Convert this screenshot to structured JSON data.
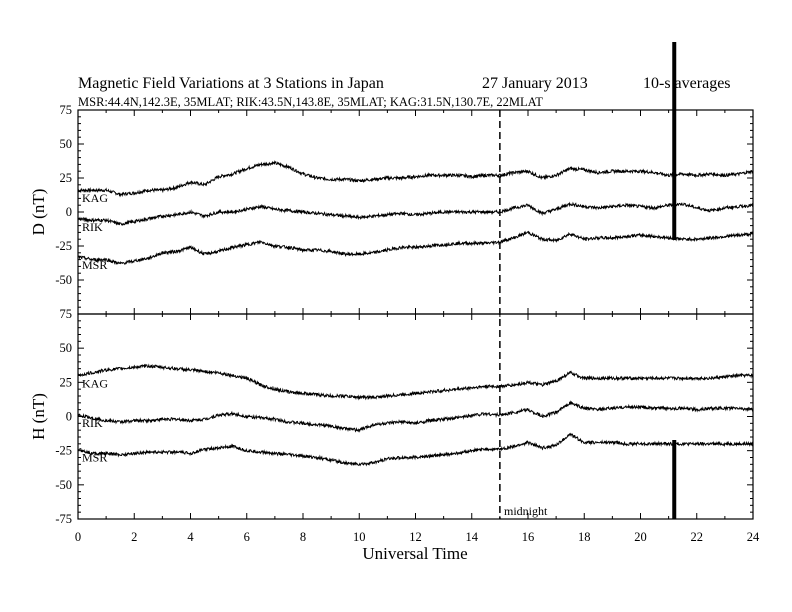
{
  "header": {
    "title": "Magnetic Field Variations at 3 Stations in Japan",
    "date": "27 January  2013",
    "averaging": "10-s averages",
    "stations_line": "MSR:44.4N,142.3E, 35MLAT;  RIK:43.5N,143.8E, 35MLAT;  KAG:31.5N,130.7E, 22MLAT"
  },
  "chart_data": {
    "type": "line",
    "xlabel": "Universal Time",
    "xlim": [
      0,
      24
    ],
    "xticks": [
      "0",
      "2",
      "4",
      "6",
      "8",
      "10",
      "12",
      "14",
      "16",
      "18",
      "20",
      "22",
      "24"
    ],
    "midnight_ut": 15,
    "midnight_label": "midnight",
    "event_marker_ut": 21.2,
    "grid": false,
    "panels": [
      {
        "ylabel": "D (nT)",
        "ylim": [
          -75,
          75
        ],
        "yticks": [
          "75",
          "50",
          "25",
          "0",
          "-25",
          "-50",
          "-75"
        ],
        "x": [
          0,
          0.5,
          1,
          1.5,
          2,
          2.5,
          3,
          3.5,
          4,
          4.5,
          5,
          5.5,
          6,
          6.5,
          7,
          7.5,
          8,
          8.5,
          9,
          9.5,
          10,
          10.5,
          11,
          11.5,
          12,
          12.5,
          13,
          13.5,
          14,
          14.5,
          15,
          15.5,
          16,
          16.5,
          17,
          17.5,
          18,
          18.5,
          19,
          19.5,
          20,
          20.5,
          21,
          21.5,
          22,
          22.5,
          23,
          23.5,
          24
        ],
        "series": [
          {
            "name": "KAG",
            "values": [
              16,
              16,
              16,
              13,
              14,
              16,
              16,
              18,
              22,
              20,
              26,
              28,
              32,
              35,
              36,
              33,
              28,
              25,
              24,
              24,
              23,
              24,
              25,
              25,
              26,
              27,
              27,
              27,
              26,
              27,
              27,
              29,
              30,
              25,
              27,
              32,
              31,
              29,
              30,
              30,
              30,
              29,
              27,
              28,
              27,
              28,
              27,
              28,
              30
            ]
          },
          {
            "name": "RIK",
            "values": [
              -5,
              -6,
              -6,
              -9,
              -7,
              -5,
              -3,
              -2,
              0,
              -3,
              0,
              0,
              2,
              4,
              2,
              1,
              0,
              -1,
              -2,
              -3,
              -4,
              -3,
              -2,
              -1,
              -2,
              -1,
              0,
              0,
              0,
              0,
              0,
              3,
              5,
              -1,
              2,
              6,
              4,
              3,
              4,
              5,
              4,
              3,
              5,
              6,
              3,
              1,
              3,
              4,
              5
            ]
          },
          {
            "name": "MSR",
            "values": [
              -33,
              -35,
              -35,
              -38,
              -36,
              -34,
              -30,
              -29,
              -26,
              -31,
              -29,
              -26,
              -24,
              -22,
              -25,
              -26,
              -28,
              -28,
              -29,
              -31,
              -31,
              -30,
              -28,
              -26,
              -26,
              -25,
              -24,
              -23,
              -23,
              -23,
              -22,
              -19,
              -15,
              -20,
              -21,
              -16,
              -20,
              -19,
              -19,
              -18,
              -17,
              -18,
              -19,
              -20,
              -20,
              -19,
              -18,
              -17,
              -16
            ]
          }
        ]
      },
      {
        "ylabel": "H (nT)",
        "ylim": [
          -75,
          75
        ],
        "yticks": [
          "75",
          "50",
          "25",
          "0",
          "-25",
          "-50",
          "-75"
        ],
        "x": [
          0,
          0.5,
          1,
          1.5,
          2,
          2.5,
          3,
          3.5,
          4,
          4.5,
          5,
          5.5,
          6,
          6.5,
          7,
          7.5,
          8,
          8.5,
          9,
          9.5,
          10,
          10.5,
          11,
          11.5,
          12,
          12.5,
          13,
          13.5,
          14,
          14.5,
          15,
          15.5,
          16,
          16.5,
          17,
          17.5,
          18,
          18.5,
          19,
          19.5,
          20,
          20.5,
          21,
          21.5,
          22,
          22.5,
          23,
          23.5,
          24
        ],
        "series": [
          {
            "name": "KAG",
            "values": [
              30,
              32,
              34,
              35,
              36,
              37,
              36,
              35,
              34,
              33,
              32,
              30,
              28,
              23,
              20,
              18,
              17,
              16,
              15,
              15,
              14,
              14,
              15,
              16,
              17,
              18,
              19,
              20,
              21,
              22,
              22,
              23,
              25,
              23,
              26,
              32,
              28,
              28,
              28,
              28,
              28,
              28,
              28,
              28,
              28,
              28,
              29,
              30,
              30
            ]
          },
          {
            "name": "RIK",
            "values": [
              1,
              -1,
              -3,
              -4,
              -3,
              -3,
              -2,
              -2,
              -3,
              -2,
              1,
              2,
              0,
              -1,
              -2,
              -4,
              -5,
              -6,
              -7,
              -9,
              -10,
              -6,
              -5,
              -4,
              -5,
              -3,
              -2,
              -1,
              1,
              2,
              1,
              3,
              5,
              0,
              3,
              10,
              6,
              5,
              6,
              7,
              7,
              6,
              6,
              6,
              5,
              6,
              6,
              6,
              5
            ]
          },
          {
            "name": "MSR",
            "values": [
              -24,
              -27,
              -27,
              -28,
              -27,
              -26,
              -26,
              -26,
              -27,
              -24,
              -23,
              -22,
              -25,
              -26,
              -27,
              -28,
              -29,
              -30,
              -32,
              -34,
              -35,
              -34,
              -31,
              -30,
              -30,
              -29,
              -28,
              -27,
              -25,
              -24,
              -24,
              -22,
              -19,
              -23,
              -21,
              -13,
              -19,
              -19,
              -19,
              -20,
              -20,
              -20,
              -20,
              -20,
              -20,
              -20,
              -20,
              -20,
              -20
            ]
          }
        ]
      }
    ]
  }
}
